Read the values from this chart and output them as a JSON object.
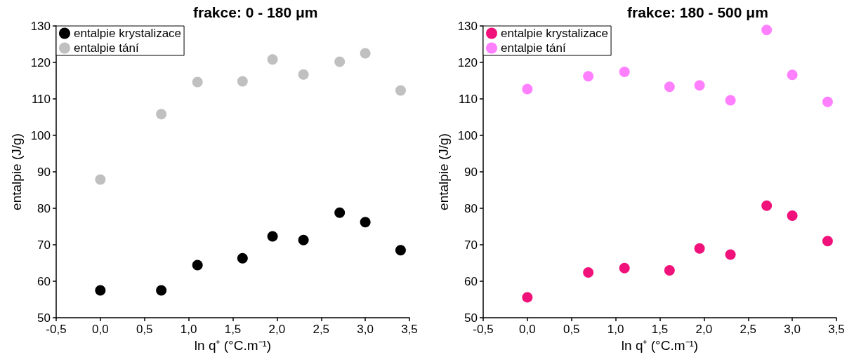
{
  "chart_data": [
    {
      "type": "scatter",
      "title": "frakce: 0 - 180 μm",
      "xlabel": "ln q⁺ (°C.m⁻¹)",
      "ylabel": "entalpie (J/g)",
      "x": [
        0,
        0.69,
        1.1,
        1.61,
        1.95,
        2.3,
        2.71,
        3.0,
        3.4
      ],
      "series": [
        {
          "name": "entalpie krystalizace",
          "color": "#000000",
          "values": [
            57.5,
            57.5,
            64.4,
            66.3,
            72.3,
            71.3,
            78.8,
            76.2,
            68.5
          ]
        },
        {
          "name": "entalpie tání",
          "color": "#c0c0c0",
          "values": [
            87.9,
            105.8,
            114.6,
            114.8,
            120.8,
            116.7,
            120.2,
            122.5,
            112.3
          ]
        }
      ],
      "xlim": [
        -0.5,
        3.5
      ],
      "xticks": [
        {
          "value": -0.5,
          "label": "-0,5"
        },
        {
          "value": 0,
          "label": "0,0"
        },
        {
          "value": 0.5,
          "label": "0,5"
        },
        {
          "value": 1,
          "label": "1,0"
        },
        {
          "value": 1.5,
          "label": "1,5"
        },
        {
          "value": 2,
          "label": "2,0"
        },
        {
          "value": 2.5,
          "label": "2,5"
        },
        {
          "value": 3,
          "label": "3,0"
        },
        {
          "value": 3.5,
          "label": "3,5"
        }
      ],
      "ylim": [
        50,
        130
      ],
      "yticks": [
        50,
        60,
        70,
        80,
        90,
        100,
        110,
        120,
        130
      ],
      "legend": "top left",
      "marker": "circle",
      "grid": false
    },
    {
      "type": "scatter",
      "title": "frakce: 180 - 500 μm",
      "xlabel": "ln q⁺ (°C.m⁻¹)",
      "ylabel": "entalpie (J/g)",
      "x": [
        0,
        0.69,
        1.1,
        1.61,
        1.95,
        2.3,
        2.71,
        3.0,
        3.4
      ],
      "series": [
        {
          "name": "entalpie krystalizace",
          "color": "#f0127a",
          "values": [
            55.6,
            62.4,
            63.6,
            63.0,
            69.0,
            67.3,
            80.7,
            78.0,
            71.0
          ]
        },
        {
          "name": "entalpie tání",
          "color": "#ff80ff",
          "values": [
            112.7,
            116.2,
            117.4,
            113.3,
            113.7,
            109.6,
            128.9,
            116.6,
            109.2
          ]
        }
      ],
      "xlim": [
        -0.5,
        3.5
      ],
      "xticks": [
        {
          "value": -0.5,
          "label": "-0,5"
        },
        {
          "value": 0,
          "label": "0,0"
        },
        {
          "value": 0.5,
          "label": "0,5"
        },
        {
          "value": 1,
          "label": "1,0"
        },
        {
          "value": 1.5,
          "label": "1,5"
        },
        {
          "value": 2,
          "label": "2,0"
        },
        {
          "value": 2.5,
          "label": "2,5"
        },
        {
          "value": 3,
          "label": "3,0"
        },
        {
          "value": 3.5,
          "label": "3,5"
        }
      ],
      "ylim": [
        50,
        130
      ],
      "yticks": [
        50,
        60,
        70,
        80,
        90,
        100,
        110,
        120,
        130
      ],
      "legend": "top left",
      "marker": "circle",
      "grid": false
    }
  ]
}
